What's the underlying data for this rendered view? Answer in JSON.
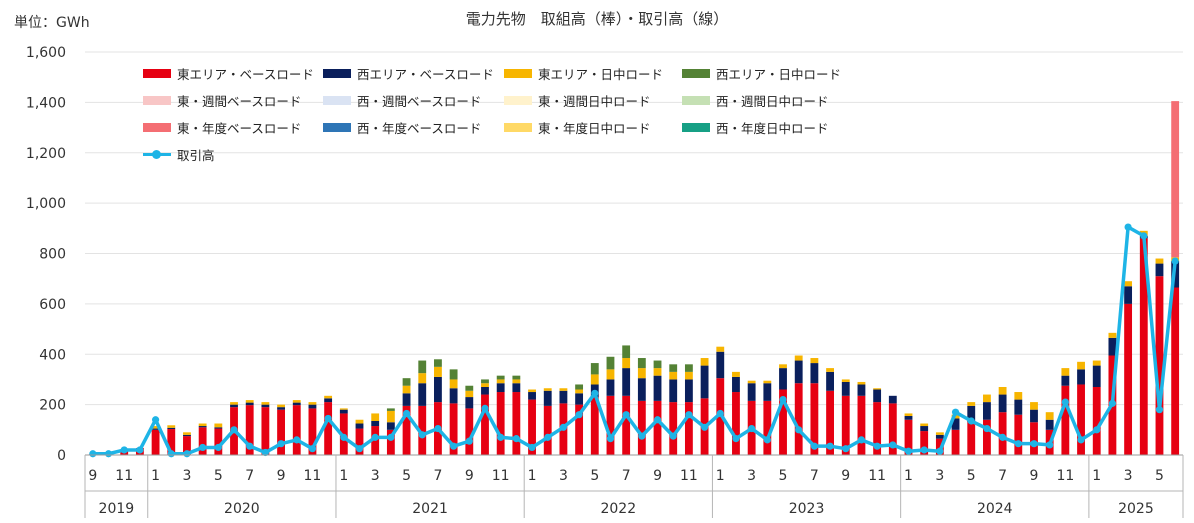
{
  "page": {
    "title": "電力先物　取組高（棒）・取引高（線）",
    "unit": "単位：GWh"
  },
  "chart_data": {
    "type": "bar",
    "stacked": true,
    "title": "電力先物　取組高（棒）・取引高（線）",
    "ylabel": "単位：GWh",
    "ylim": [
      0,
      1600
    ],
    "yticks": [
      0,
      200,
      400,
      600,
      800,
      1000,
      1200,
      1400,
      1600
    ],
    "ytick_labels": [
      "0",
      "200",
      "400",
      "600",
      "800",
      "1,000",
      "1,200",
      "1,400",
      "1,600"
    ],
    "grid": true,
    "legend_position": "top-left",
    "year_groups": [
      {
        "label": "2019",
        "count": 4
      },
      {
        "label": "2020",
        "count": 12
      },
      {
        "label": "2021",
        "count": 12
      },
      {
        "label": "2022",
        "count": 12
      },
      {
        "label": "2023",
        "count": 12
      },
      {
        "label": "2024",
        "count": 12
      },
      {
        "label": "2025",
        "count": 6
      }
    ],
    "categories": [
      "9",
      "10",
      "11",
      "12",
      "1",
      "2",
      "3",
      "4",
      "5",
      "6",
      "7",
      "8",
      "9",
      "10",
      "11",
      "12",
      "1",
      "2",
      "3",
      "4",
      "5",
      "6",
      "7",
      "8",
      "9",
      "10",
      "11",
      "12",
      "1",
      "2",
      "3",
      "4",
      "5",
      "6",
      "7",
      "8",
      "9",
      "10",
      "11",
      "12",
      "1",
      "2",
      "3",
      "4",
      "5",
      "6",
      "7",
      "8",
      "9",
      "10",
      "11",
      "12",
      "1",
      "2",
      "3",
      "4",
      "5",
      "6",
      "7",
      "8",
      "9",
      "10",
      "11",
      "12",
      "1",
      "2",
      "3",
      "4",
      "5",
      "6"
    ],
    "category_labels": [
      "9",
      "",
      "11",
      "",
      "1",
      "",
      "3",
      "",
      "5",
      "",
      "7",
      "",
      "9",
      "",
      "11",
      "",
      "1",
      "",
      "3",
      "",
      "5",
      "",
      "7",
      "",
      "9",
      "",
      "11",
      "",
      "1",
      "",
      "3",
      "",
      "5",
      "",
      "7",
      "",
      "9",
      "",
      "11",
      "",
      "1",
      "",
      "3",
      "",
      "5",
      "",
      "7",
      "",
      "9",
      "",
      "11",
      "",
      "1",
      "",
      "3",
      "",
      "5",
      "",
      "7",
      "",
      "9",
      "",
      "11",
      "",
      "1",
      "",
      "3",
      "",
      "5",
      ""
    ],
    "series": [
      {
        "name": "東エリア・ベースロード",
        "color": "#E60012",
        "values": [
          3,
          3,
          18,
          28,
          100,
          103,
          75,
          110,
          105,
          190,
          198,
          190,
          180,
          198,
          185,
          210,
          165,
          105,
          115,
          100,
          195,
          195,
          210,
          205,
          185,
          240,
          250,
          250,
          220,
          195,
          205,
          200,
          230,
          235,
          235,
          215,
          215,
          210,
          210,
          225,
          305,
          250,
          215,
          215,
          260,
          285,
          285,
          255,
          235,
          235,
          210,
          205,
          140,
          95,
          65,
          100,
          130,
          140,
          170,
          160,
          130,
          100,
          275,
          280,
          270,
          395,
          600,
          860,
          710,
          665
        ]
      },
      {
        "name": "西エリア・ベースロード",
        "color": "#0A1F5C",
        "values": [
          0,
          0,
          0,
          0,
          5,
          5,
          5,
          5,
          5,
          10,
          10,
          10,
          10,
          10,
          15,
          15,
          15,
          20,
          20,
          30,
          50,
          90,
          100,
          60,
          45,
          30,
          35,
          35,
          30,
          60,
          50,
          45,
          50,
          65,
          110,
          90,
          100,
          90,
          90,
          130,
          105,
          60,
          70,
          70,
          85,
          90,
          80,
          75,
          55,
          45,
          50,
          30,
          15,
          20,
          15,
          45,
          65,
          70,
          70,
          60,
          50,
          40,
          40,
          60,
          85,
          70,
          70,
          10,
          50,
          105
        ]
      },
      {
        "name": "東エリア・日中ロード",
        "color": "#F7B500",
        "values": [
          0,
          0,
          0,
          0,
          10,
          10,
          10,
          10,
          15,
          10,
          10,
          10,
          10,
          10,
          10,
          10,
          5,
          15,
          30,
          45,
          30,
          40,
          40,
          35,
          25,
          15,
          15,
          15,
          10,
          10,
          10,
          15,
          40,
          40,
          40,
          40,
          30,
          30,
          30,
          30,
          20,
          20,
          10,
          10,
          15,
          20,
          20,
          15,
          10,
          10,
          5,
          0,
          10,
          10,
          10,
          15,
          15,
          30,
          30,
          30,
          30,
          30,
          30,
          30,
          20,
          20,
          20,
          20,
          20,
          15
        ]
      },
      {
        "name": "西エリア・日中ロード",
        "color": "#548235",
        "values": [
          0,
          0,
          0,
          0,
          0,
          0,
          0,
          0,
          0,
          0,
          0,
          0,
          0,
          0,
          0,
          0,
          0,
          0,
          0,
          10,
          30,
          50,
          30,
          40,
          20,
          15,
          15,
          15,
          0,
          0,
          0,
          20,
          45,
          50,
          50,
          40,
          30,
          30,
          30,
          0,
          0,
          0,
          0,
          0,
          0,
          0,
          0,
          0,
          0,
          0,
          0,
          0,
          0,
          0,
          0,
          0,
          0,
          0,
          0,
          0,
          0,
          0,
          0,
          0,
          0,
          0,
          0,
          0,
          0,
          0
        ]
      },
      {
        "name": "東・週間ベースロード",
        "color": "#F8C6C6",
        "values": [
          0,
          0,
          0,
          0,
          0,
          0,
          0,
          0,
          0,
          0,
          0,
          0,
          0,
          0,
          0,
          0,
          0,
          0,
          0,
          0,
          0,
          0,
          0,
          0,
          0,
          0,
          0,
          0,
          0,
          0,
          0,
          0,
          0,
          0,
          0,
          0,
          0,
          0,
          0,
          0,
          0,
          0,
          0,
          0,
          0,
          0,
          0,
          0,
          0,
          0,
          0,
          0,
          0,
          0,
          0,
          0,
          0,
          0,
          0,
          0,
          0,
          0,
          0,
          0,
          0,
          0,
          0,
          0,
          0,
          0
        ]
      },
      {
        "name": "西・週間ベースロード",
        "color": "#DAE3F3",
        "values": [
          0,
          0,
          0,
          0,
          0,
          0,
          0,
          0,
          0,
          0,
          0,
          0,
          0,
          0,
          0,
          0,
          0,
          0,
          0,
          0,
          0,
          0,
          0,
          0,
          0,
          0,
          0,
          0,
          0,
          0,
          0,
          0,
          0,
          0,
          0,
          0,
          0,
          0,
          0,
          0,
          0,
          0,
          0,
          0,
          0,
          0,
          0,
          0,
          0,
          0,
          0,
          0,
          0,
          0,
          0,
          0,
          0,
          0,
          0,
          0,
          0,
          0,
          0,
          0,
          0,
          0,
          0,
          0,
          0,
          0
        ]
      },
      {
        "name": "東・週間日中ロード",
        "color": "#FFF2CC",
        "values": [
          0,
          0,
          0,
          0,
          0,
          0,
          0,
          0,
          0,
          0,
          0,
          0,
          0,
          0,
          0,
          0,
          0,
          0,
          0,
          0,
          0,
          0,
          0,
          0,
          0,
          0,
          0,
          0,
          0,
          0,
          0,
          0,
          0,
          0,
          0,
          0,
          0,
          0,
          0,
          0,
          0,
          0,
          0,
          0,
          0,
          0,
          0,
          0,
          0,
          0,
          0,
          0,
          0,
          0,
          0,
          0,
          0,
          0,
          0,
          0,
          0,
          0,
          0,
          0,
          0,
          0,
          0,
          0,
          0,
          0
        ]
      },
      {
        "name": "西・週間日中ロード",
        "color": "#C5E0B4",
        "values": [
          0,
          0,
          0,
          0,
          0,
          0,
          0,
          0,
          0,
          0,
          0,
          0,
          0,
          0,
          0,
          0,
          0,
          0,
          0,
          0,
          0,
          0,
          0,
          0,
          0,
          0,
          0,
          0,
          0,
          0,
          0,
          0,
          0,
          0,
          0,
          0,
          0,
          0,
          0,
          0,
          0,
          0,
          0,
          0,
          0,
          0,
          0,
          0,
          0,
          0,
          0,
          0,
          0,
          0,
          0,
          0,
          0,
          0,
          0,
          0,
          0,
          0,
          0,
          0,
          0,
          0,
          0,
          0,
          0,
          0
        ]
      },
      {
        "name": "東・年度ベースロード",
        "color": "#F46E73",
        "values": [
          0,
          0,
          0,
          0,
          0,
          0,
          0,
          0,
          0,
          0,
          0,
          0,
          0,
          0,
          0,
          0,
          0,
          0,
          0,
          0,
          0,
          0,
          0,
          0,
          0,
          0,
          0,
          0,
          0,
          0,
          0,
          0,
          0,
          0,
          0,
          0,
          0,
          0,
          0,
          0,
          0,
          0,
          0,
          0,
          0,
          0,
          0,
          0,
          0,
          0,
          0,
          0,
          0,
          0,
          0,
          0,
          0,
          0,
          0,
          0,
          0,
          0,
          0,
          0,
          0,
          0,
          0,
          0,
          0,
          620
        ]
      },
      {
        "name": "西・年度ベースロード",
        "color": "#2E75B6",
        "values": [
          0,
          0,
          0,
          0,
          0,
          0,
          0,
          0,
          0,
          0,
          0,
          0,
          0,
          0,
          0,
          0,
          0,
          0,
          0,
          0,
          0,
          0,
          0,
          0,
          0,
          0,
          0,
          0,
          0,
          0,
          0,
          0,
          0,
          0,
          0,
          0,
          0,
          0,
          0,
          0,
          0,
          0,
          0,
          0,
          0,
          0,
          0,
          0,
          0,
          0,
          0,
          0,
          0,
          0,
          0,
          0,
          0,
          0,
          0,
          0,
          0,
          0,
          0,
          0,
          0,
          0,
          0,
          0,
          0,
          0
        ]
      },
      {
        "name": "東・年度日中ロード",
        "color": "#FFD966",
        "values": [
          0,
          0,
          0,
          0,
          0,
          0,
          0,
          0,
          0,
          0,
          0,
          0,
          0,
          0,
          0,
          0,
          0,
          0,
          0,
          0,
          0,
          0,
          0,
          0,
          0,
          0,
          0,
          0,
          0,
          0,
          0,
          0,
          0,
          0,
          0,
          0,
          0,
          0,
          0,
          0,
          0,
          0,
          0,
          0,
          0,
          0,
          0,
          0,
          0,
          0,
          0,
          0,
          0,
          0,
          0,
          0,
          0,
          0,
          0,
          0,
          0,
          0,
          0,
          0,
          0,
          0,
          0,
          0,
          0,
          0
        ]
      },
      {
        "name": "西・年度日中ロード",
        "color": "#16A085",
        "values": [
          0,
          0,
          0,
          0,
          0,
          0,
          0,
          0,
          0,
          0,
          0,
          0,
          0,
          0,
          0,
          0,
          0,
          0,
          0,
          0,
          0,
          0,
          0,
          0,
          0,
          0,
          0,
          0,
          0,
          0,
          0,
          0,
          0,
          0,
          0,
          0,
          0,
          0,
          0,
          0,
          0,
          0,
          0,
          0,
          0,
          0,
          0,
          0,
          0,
          0,
          0,
          0,
          0,
          0,
          0,
          0,
          0,
          0,
          0,
          0,
          0,
          0,
          0,
          0,
          0,
          0,
          0,
          0,
          0,
          0
        ]
      }
    ],
    "line": {
      "name": "取引高",
      "type": "line",
      "color": "#1EB4E6",
      "values": [
        5,
        5,
        20,
        20,
        140,
        5,
        5,
        30,
        30,
        100,
        35,
        10,
        45,
        60,
        25,
        145,
        70,
        25,
        70,
        70,
        165,
        80,
        105,
        35,
        55,
        185,
        70,
        65,
        30,
        70,
        110,
        160,
        245,
        65,
        160,
        75,
        140,
        75,
        160,
        110,
        165,
        65,
        105,
        60,
        220,
        100,
        35,
        35,
        25,
        60,
        35,
        40,
        15,
        20,
        15,
        170,
        135,
        105,
        70,
        45,
        45,
        40,
        210,
        60,
        100,
        205,
        905,
        870,
        180,
        770
      ]
    }
  }
}
